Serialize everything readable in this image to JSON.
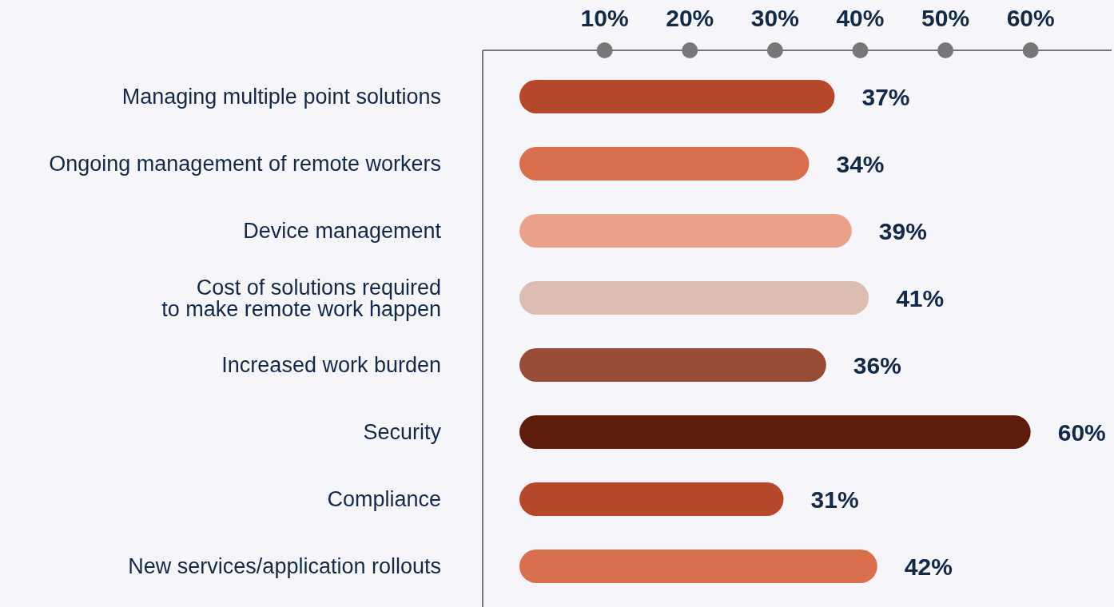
{
  "chart_data": {
    "type": "bar",
    "orientation": "horizontal",
    "categories": [
      "Managing multiple point solutions",
      "Ongoing management of remote workers",
      "Device management",
      "Cost of solutions required\nto make remote work happen",
      "Increased work burden",
      "Security",
      "Compliance",
      "New services/application rollouts"
    ],
    "values": [
      37,
      34,
      39,
      41,
      36,
      60,
      31,
      42
    ],
    "colors": [
      "#b5472a",
      "#da6f4e",
      "#eaa18a",
      "#dcbdb1",
      "#974c36",
      "#5e1d0c",
      "#b5472a",
      "#da6f4e"
    ],
    "value_labels": [
      "37%",
      "34%",
      "39%",
      "41%",
      "36%",
      "60%",
      "31%",
      "42%"
    ],
    "xlim": [
      0,
      69.5
    ],
    "xticks": [
      {
        "value": 10,
        "label": "10%"
      },
      {
        "value": 20,
        "label": "20%"
      },
      {
        "value": 30,
        "label": "30%"
      },
      {
        "value": 40,
        "label": "40%"
      },
      {
        "value": 50,
        "label": "50%"
      },
      {
        "value": 60,
        "label": "60%"
      }
    ],
    "grid": false
  }
}
